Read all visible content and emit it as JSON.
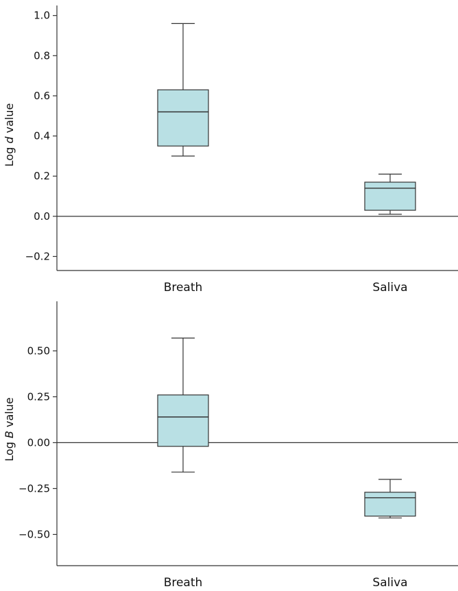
{
  "chart_data": [
    {
      "type": "box",
      "ylabel": {
        "prefix": "Log ",
        "variable": "d",
        "suffix": " value"
      },
      "categories": [
        "Breath",
        "Saliva"
      ],
      "ylim": [
        -0.27,
        1.05
      ],
      "yticks": [
        1.0,
        0.8,
        0.6,
        0.4,
        0.2,
        0.0,
        -0.2
      ],
      "ytick_labels": [
        "1.0",
        "0.8",
        "0.6",
        "0.4",
        "0.2",
        "0.0",
        "−0.2"
      ],
      "reference_line": 0,
      "box_color": "#b9e0e4",
      "boxes": [
        {
          "category": "Breath",
          "whisker_low": 0.3,
          "q1": 0.35,
          "median": 0.52,
          "q3": 0.63,
          "whisker_high": 0.96
        },
        {
          "category": "Saliva",
          "whisker_low": 0.01,
          "q1": 0.03,
          "median": 0.14,
          "q3": 0.17,
          "whisker_high": 0.21
        }
      ]
    },
    {
      "type": "box",
      "ylabel": {
        "prefix": "Log ",
        "variable": "B",
        "suffix": " value"
      },
      "categories": [
        "Breath",
        "Saliva"
      ],
      "ylim": [
        -0.67,
        0.77
      ],
      "yticks": [
        0.5,
        0.25,
        0.0,
        -0.25,
        -0.5
      ],
      "ytick_labels": [
        "0.50",
        "0.25",
        "0.00",
        "−0.25",
        "−0.50"
      ],
      "reference_line": 0,
      "box_color": "#b9e0e4",
      "boxes": [
        {
          "category": "Breath",
          "whisker_low": -0.16,
          "q1": -0.02,
          "median": 0.14,
          "q3": 0.26,
          "whisker_high": 0.57
        },
        {
          "category": "Saliva",
          "whisker_low": -0.41,
          "q1": -0.4,
          "median": -0.3,
          "q3": -0.27,
          "whisker_high": -0.2
        }
      ]
    }
  ]
}
